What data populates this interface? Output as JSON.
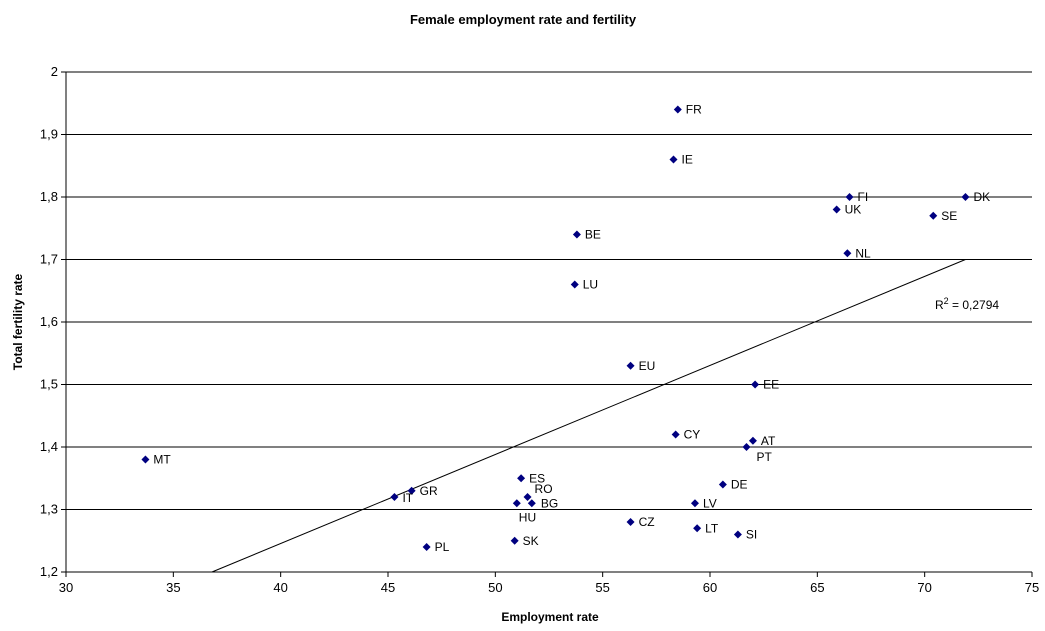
{
  "chart_data": {
    "type": "scatter",
    "title": "Female employment rate and fertility",
    "xlabel": "Employment rate",
    "ylabel": "Total fertility rate",
    "xlim": [
      30,
      75
    ],
    "ylim": [
      1.2,
      2.0
    ],
    "x_ticks": [
      "30",
      "35",
      "40",
      "45",
      "50",
      "55",
      "60",
      "65",
      "70",
      "75"
    ],
    "y_ticks": [
      "1,2",
      "1,3",
      "1,4",
      "1,5",
      "1,6",
      "1,7",
      "1,8",
      "1,9",
      "2"
    ],
    "grid": "horizontal",
    "marker_color": "#000080",
    "trendline": {
      "type": "linear",
      "r2_label": "0,2794",
      "from": [
        36.8,
        1.2
      ],
      "to": [
        71.9,
        1.7
      ]
    },
    "points": [
      {
        "label": "FR",
        "x": 58.5,
        "y": 1.94
      },
      {
        "label": "IE",
        "x": 58.3,
        "y": 1.86
      },
      {
        "label": "FI",
        "x": 66.5,
        "y": 1.8
      },
      {
        "label": "DK",
        "x": 71.9,
        "y": 1.8
      },
      {
        "label": "UK",
        "x": 65.9,
        "y": 1.78
      },
      {
        "label": "SE",
        "x": 70.4,
        "y": 1.77
      },
      {
        "label": "BE",
        "x": 53.8,
        "y": 1.74
      },
      {
        "label": "NL",
        "x": 66.4,
        "y": 1.71
      },
      {
        "label": "LU",
        "x": 53.7,
        "y": 1.66
      },
      {
        "label": "EU",
        "x": 56.3,
        "y": 1.53
      },
      {
        "label": "EE",
        "x": 62.1,
        "y": 1.5
      },
      {
        "label": "CY",
        "x": 58.4,
        "y": 1.42
      },
      {
        "label": "AT",
        "x": 62.0,
        "y": 1.41
      },
      {
        "label": "PT",
        "x": 61.7,
        "y": 1.4
      },
      {
        "label": "MT",
        "x": 33.7,
        "y": 1.38
      },
      {
        "label": "ES",
        "x": 51.2,
        "y": 1.35
      },
      {
        "label": "DE",
        "x": 60.6,
        "y": 1.34
      },
      {
        "label": "GR",
        "x": 46.1,
        "y": 1.33
      },
      {
        "label": "RO",
        "x": 51.5,
        "y": 1.32
      },
      {
        "label": "IT",
        "x": 45.3,
        "y": 1.32
      },
      {
        "label": "HU",
        "x": 51.0,
        "y": 1.31
      },
      {
        "label": "BG",
        "x": 51.7,
        "y": 1.31
      },
      {
        "label": "LV",
        "x": 59.3,
        "y": 1.31
      },
      {
        "label": "CZ",
        "x": 56.3,
        "y": 1.28
      },
      {
        "label": "LT",
        "x": 59.4,
        "y": 1.27
      },
      {
        "label": "SI",
        "x": 61.3,
        "y": 1.26
      },
      {
        "label": "SK",
        "x": 50.9,
        "y": 1.25
      },
      {
        "label": "PL",
        "x": 46.8,
        "y": 1.24
      }
    ]
  }
}
